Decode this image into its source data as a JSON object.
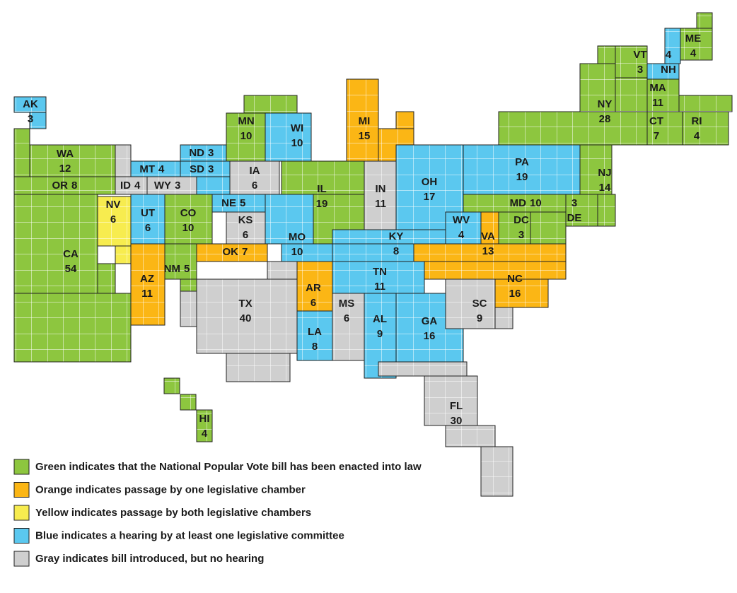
{
  "states": [
    {
      "abbr": "AK",
      "votes": 3,
      "color": "#5bc8ef"
    },
    {
      "abbr": "WA",
      "votes": 12,
      "color": "#8dc63f"
    },
    {
      "abbr": "OR",
      "votes": 8,
      "color": "#8dc63f"
    },
    {
      "abbr": "CA",
      "votes": 54,
      "color": "#8dc63f"
    },
    {
      "abbr": "NV",
      "votes": 6,
      "color": "#f7ec4f"
    },
    {
      "abbr": "ID",
      "votes": 4,
      "color": "#cfcfcf"
    },
    {
      "abbr": "MT",
      "votes": 4,
      "color": "#5bc8ef"
    },
    {
      "abbr": "WY",
      "votes": 3,
      "color": "#cfcfcf"
    },
    {
      "abbr": "ND",
      "votes": 3,
      "color": "#5bc8ef"
    },
    {
      "abbr": "SD",
      "votes": 3,
      "color": "#5bc8ef"
    },
    {
      "abbr": "UT",
      "votes": 6,
      "color": "#5bc8ef"
    },
    {
      "abbr": "CO",
      "votes": 10,
      "color": "#8dc63f"
    },
    {
      "abbr": "NE",
      "votes": 5,
      "color": "#5bc8ef"
    },
    {
      "abbr": "KS",
      "votes": 6,
      "color": "#cfcfcf"
    },
    {
      "abbr": "OK",
      "votes": 7,
      "color": "#fbb615"
    },
    {
      "abbr": "NM",
      "votes": 5,
      "color": "#8dc63f"
    },
    {
      "abbr": "AZ",
      "votes": 11,
      "color": "#fbb615"
    },
    {
      "abbr": "TX",
      "votes": 40,
      "color": "#cfcfcf"
    },
    {
      "abbr": "MN",
      "votes": 10,
      "color": "#8dc63f"
    },
    {
      "abbr": "WI",
      "votes": 10,
      "color": "#5bc8ef"
    },
    {
      "abbr": "IA",
      "votes": 6,
      "color": "#cfcfcf"
    },
    {
      "abbr": "MO",
      "votes": 10,
      "color": "#5bc8ef"
    },
    {
      "abbr": "IL",
      "votes": 19,
      "color": "#8dc63f"
    },
    {
      "abbr": "MI",
      "votes": 15,
      "color": "#fbb615"
    },
    {
      "abbr": "IN",
      "votes": 11,
      "color": "#cfcfcf"
    },
    {
      "abbr": "OH",
      "votes": 17,
      "color": "#5bc8ef"
    },
    {
      "abbr": "KY",
      "votes": 8,
      "color": "#5bc8ef"
    },
    {
      "abbr": "TN",
      "votes": 11,
      "color": "#5bc8ef"
    },
    {
      "abbr": "AR",
      "votes": 6,
      "color": "#fbb615"
    },
    {
      "abbr": "LA",
      "votes": 8,
      "color": "#5bc8ef"
    },
    {
      "abbr": "MS",
      "votes": 6,
      "color": "#cfcfcf"
    },
    {
      "abbr": "AL",
      "votes": 9,
      "color": "#5bc8ef"
    },
    {
      "abbr": "GA",
      "votes": 16,
      "color": "#5bc8ef"
    },
    {
      "abbr": "FL",
      "votes": 30,
      "color": "#cfcfcf"
    },
    {
      "abbr": "SC",
      "votes": 9,
      "color": "#cfcfcf"
    },
    {
      "abbr": "NC",
      "votes": 16,
      "color": "#fbb615"
    },
    {
      "abbr": "VA",
      "votes": 13,
      "color": "#fbb615"
    },
    {
      "abbr": "WV",
      "votes": 4,
      "color": "#5bc8ef"
    },
    {
      "abbr": "DC",
      "votes": 3,
      "color": "#8dc63f"
    },
    {
      "abbr": "MD",
      "votes": 10,
      "color": "#8dc63f"
    },
    {
      "abbr": "DE",
      "votes": 3,
      "color": "#8dc63f"
    },
    {
      "abbr": "PA",
      "votes": 19,
      "color": "#5bc8ef"
    },
    {
      "abbr": "NJ",
      "votes": 14,
      "color": "#8dc63f"
    },
    {
      "abbr": "NY",
      "votes": 28,
      "color": "#8dc63f"
    },
    {
      "abbr": "VT",
      "votes": 3,
      "color": "#8dc63f"
    },
    {
      "abbr": "NH",
      "votes": 4,
      "color": "#5bc8ef"
    },
    {
      "abbr": "ME",
      "votes": 4,
      "color": "#8dc63f"
    },
    {
      "abbr": "MA",
      "votes": 11,
      "color": "#8dc63f"
    },
    {
      "abbr": "CT",
      "votes": 7,
      "color": "#8dc63f"
    },
    {
      "abbr": "RI",
      "votes": 4,
      "color": "#8dc63f"
    },
    {
      "abbr": "HI",
      "votes": 4,
      "color": "#8dc63f"
    }
  ],
  "legend": [
    {
      "color": "#8dc63f",
      "label": "Green indicates that the National Popular Vote bill has been enacted into law"
    },
    {
      "color": "#fbb615",
      "label": "Orange indicates passage by one legislative chamber"
    },
    {
      "color": "#f7ec4f",
      "label": "Yellow indicates passage by both legislative chambers"
    },
    {
      "color": "#5bc8ef",
      "label": "Blue indicates a hearing by at least one legislative committee"
    },
    {
      "color": "#cfcfcf",
      "label": "Gray indicates bill introduced, but no hearing"
    }
  ]
}
